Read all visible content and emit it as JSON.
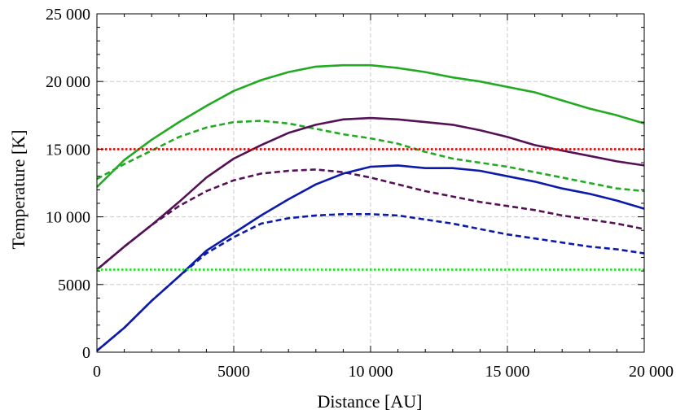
{
  "chart_data": {
    "type": "line",
    "title": "",
    "xlabel": "Distance [AU]",
    "ylabel": "Temperature [K]",
    "xlim": [
      0,
      20000
    ],
    "ylim": [
      0,
      25000
    ],
    "xticks": [
      0,
      5000,
      10000,
      15000,
      20000
    ],
    "yticks": [
      0,
      5000,
      10000,
      15000,
      20000,
      25000
    ],
    "xtick_labels": [
      "0",
      "5000",
      "10 000",
      "15 000",
      "20 000"
    ],
    "ytick_labels": [
      "0",
      "5000",
      "10 000",
      "15 000",
      "20 000",
      "25 000"
    ],
    "grid": true,
    "series": [
      {
        "color": "#22aa22",
        "style": "solid",
        "x": [
          0,
          1000,
          2000,
          3000,
          4000,
          5000,
          6000,
          7000,
          8000,
          9000,
          10000,
          11000,
          12000,
          13000,
          14000,
          15000,
          16000,
          17000,
          18000,
          19000,
          20000
        ],
        "y": [
          12200,
          14200,
          15700,
          17000,
          18200,
          19300,
          20100,
          20700,
          21100,
          21200,
          21200,
          21000,
          20700,
          20300,
          20000,
          19600,
          19200,
          18600,
          18000,
          17500,
          16900
        ]
      },
      {
        "color": "#22aa22",
        "style": "dashed",
        "x": [
          0,
          1000,
          2000,
          3000,
          4000,
          5000,
          6000,
          7000,
          8000,
          9000,
          10000,
          11000,
          12000,
          13000,
          14000,
          15000,
          16000,
          17000,
          18000,
          19000,
          20000
        ],
        "y": [
          12800,
          13900,
          14900,
          15900,
          16600,
          17000,
          17100,
          16900,
          16500,
          16100,
          15800,
          15400,
          14800,
          14300,
          14000,
          13700,
          13300,
          12900,
          12500,
          12100,
          11900
        ]
      },
      {
        "color": "#551155",
        "style": "solid",
        "x": [
          0,
          1000,
          2000,
          3000,
          4000,
          5000,
          6000,
          7000,
          8000,
          9000,
          10000,
          11000,
          12000,
          13000,
          14000,
          15000,
          16000,
          17000,
          18000,
          19000,
          20000
        ],
        "y": [
          6100,
          7800,
          9400,
          11100,
          12900,
          14300,
          15300,
          16200,
          16800,
          17200,
          17300,
          17200,
          17000,
          16800,
          16400,
          15900,
          15300,
          14900,
          14500,
          14100,
          13800
        ]
      },
      {
        "color": "#551155",
        "style": "dashed",
        "x": [
          0,
          1000,
          2000,
          3000,
          4000,
          5000,
          6000,
          7000,
          8000,
          9000,
          10000,
          11000,
          12000,
          13000,
          14000,
          15000,
          16000,
          17000,
          18000,
          19000,
          20000
        ],
        "y": [
          6100,
          7800,
          9400,
          10800,
          11900,
          12700,
          13200,
          13400,
          13500,
          13300,
          12900,
          12400,
          11900,
          11500,
          11100,
          10800,
          10500,
          10100,
          9800,
          9500,
          9100
        ]
      },
      {
        "color": "#0b1aaa",
        "style": "solid",
        "x": [
          0,
          1000,
          2000,
          3000,
          4000,
          5000,
          6000,
          7000,
          8000,
          9000,
          10000,
          11000,
          12000,
          13000,
          14000,
          15000,
          16000,
          17000,
          18000,
          19000,
          20000
        ],
        "y": [
          100,
          1800,
          3800,
          5600,
          7500,
          8800,
          10100,
          11300,
          12400,
          13200,
          13700,
          13800,
          13600,
          13600,
          13400,
          13000,
          12600,
          12100,
          11700,
          11200,
          10600
        ]
      },
      {
        "color": "#0b1aaa",
        "style": "dashed",
        "x": [
          0,
          1000,
          2000,
          3000,
          4000,
          5000,
          6000,
          7000,
          8000,
          9000,
          10000,
          11000,
          12000,
          13000,
          14000,
          15000,
          16000,
          17000,
          18000,
          19000,
          20000
        ],
        "y": [
          100,
          1800,
          3800,
          5600,
          7300,
          8500,
          9500,
          9900,
          10100,
          10200,
          10200,
          10100,
          9800,
          9500,
          9100,
          8700,
          8400,
          8100,
          7800,
          7600,
          7300
        ]
      },
      {
        "color": "#ee0000",
        "style": "dotted",
        "x": [
          0,
          20000
        ],
        "y": [
          15000,
          15000
        ]
      },
      {
        "color": "#00ee00",
        "style": "dotted",
        "x": [
          0,
          20000
        ],
        "y": [
          6100,
          6100
        ]
      }
    ]
  }
}
